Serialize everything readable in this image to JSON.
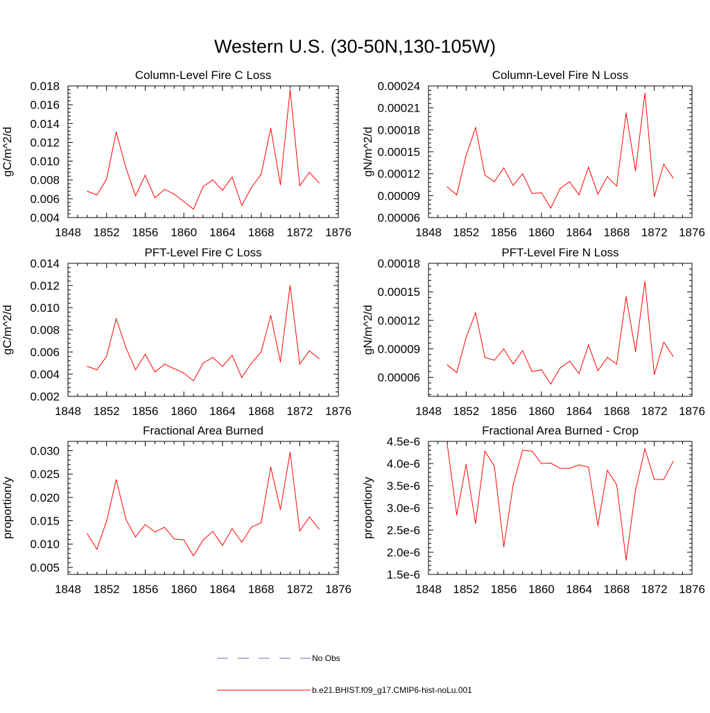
{
  "figure": {
    "title": "Western U.S. (30-50N,130-105W)"
  },
  "legend": {
    "items": [
      {
        "label": "No Obs",
        "color": "#6a6ab8",
        "dash": true
      },
      {
        "label": "b.e21.BHIST.f09_g17.CMIP6-hist-noLu.001",
        "color": "#ff0000",
        "dash": false
      }
    ]
  },
  "colors": {
    "series": "#ff0000",
    "obs": "#6a6ab8"
  },
  "chart_data": [
    {
      "type": "line",
      "title": "Column-Level Fire C Loss",
      "ylabel": "gC/m^2/d",
      "xlim": [
        1848,
        1876
      ],
      "ylim": [
        0.004,
        0.018
      ],
      "xticks": [
        "1848",
        "1852",
        "1856",
        "1860",
        "1864",
        "1868",
        "1872",
        "1876"
      ],
      "yticks": [
        "0.004",
        "0.006",
        "0.008",
        "0.010",
        "0.012",
        "0.014",
        "0.016",
        "0.018"
      ],
      "x": [
        1850,
        1851,
        1852,
        1853,
        1854,
        1855,
        1856,
        1857,
        1858,
        1859,
        1860,
        1861,
        1862,
        1863,
        1864,
        1865,
        1866,
        1867,
        1868,
        1869,
        1870,
        1871,
        1872,
        1873,
        1874
      ],
      "series": [
        {
          "name": "b.e21.BHIST.f09_g17.CMIP6-hist-noLu.001",
          "values": [
            0.0068,
            0.0064,
            0.0081,
            0.0131,
            0.0093,
            0.0063,
            0.0085,
            0.0061,
            0.007,
            0.0065,
            0.0057,
            0.0049,
            0.0073,
            0.008,
            0.0069,
            0.0083,
            0.0053,
            0.0072,
            0.0086,
            0.0135,
            0.0075,
            0.0176,
            0.0074,
            0.0088,
            0.0077
          ]
        }
      ]
    },
    {
      "type": "line",
      "title": "Column-Level Fire N Loss",
      "ylabel": "gN/m^2/d",
      "xlim": [
        1848,
        1876
      ],
      "ylim": [
        6e-05,
        0.00024
      ],
      "xticks": [
        "1848",
        "1852",
        "1856",
        "1860",
        "1864",
        "1868",
        "1872",
        "1876"
      ],
      "yticks": [
        "0.00006",
        "0.00009",
        "0.00012",
        "0.00015",
        "0.00018",
        "0.00021",
        "0.00024"
      ],
      "x": [
        1850,
        1851,
        1852,
        1853,
        1854,
        1855,
        1856,
        1857,
        1858,
        1859,
        1860,
        1861,
        1862,
        1863,
        1864,
        1865,
        1866,
        1867,
        1868,
        1869,
        1870,
        1871,
        1872,
        1873,
        1874
      ],
      "series": [
        {
          "name": "b.e21.BHIST.f09_g17.CMIP6-hist-noLu.001",
          "values": [
            0.000102,
            9.1e-05,
            0.000145,
            0.000183,
            0.000118,
            0.000109,
            0.000128,
            0.000104,
            0.00012,
            9.3e-05,
            9.4e-05,
            7.3e-05,
            0.0001,
            0.000109,
            9.1e-05,
            0.000129,
            9.2e-05,
            0.000116,
            0.000103,
            0.000203,
            0.000124,
            0.00023,
            8.9e-05,
            0.000133,
            0.000114
          ]
        }
      ]
    },
    {
      "type": "line",
      "title": "PFT-Level Fire C Loss",
      "ylabel": "gC/m^2/d",
      "xlim": [
        1848,
        1876
      ],
      "ylim": [
        0.002,
        0.014
      ],
      "xticks": [
        "1848",
        "1852",
        "1856",
        "1860",
        "1864",
        "1868",
        "1872",
        "1876"
      ],
      "yticks": [
        "0.002",
        "0.004",
        "0.006",
        "0.008",
        "0.010",
        "0.012",
        "0.014"
      ],
      "x": [
        1850,
        1851,
        1852,
        1853,
        1854,
        1855,
        1856,
        1857,
        1858,
        1859,
        1860,
        1861,
        1862,
        1863,
        1864,
        1865,
        1866,
        1867,
        1868,
        1869,
        1870,
        1871,
        1872,
        1873,
        1874
      ],
      "series": [
        {
          "name": "b.e21.BHIST.f09_g17.CMIP6-hist-noLu.001",
          "values": [
            0.0047,
            0.0044,
            0.0056,
            0.009,
            0.0064,
            0.0044,
            0.0058,
            0.0042,
            0.0049,
            0.0045,
            0.0041,
            0.0034,
            0.005,
            0.0055,
            0.0047,
            0.0057,
            0.0037,
            0.005,
            0.006,
            0.0093,
            0.0051,
            0.012,
            0.0049,
            0.0061,
            0.0054
          ]
        }
      ]
    },
    {
      "type": "line",
      "title": "PFT-Level Fire N Loss",
      "ylabel": "gN/m^2/d",
      "xlim": [
        1848,
        1876
      ],
      "ylim": [
        4e-05,
        0.00018
      ],
      "xticks": [
        "1848",
        "1852",
        "1856",
        "1860",
        "1864",
        "1868",
        "1872",
        "1876"
      ],
      "yticks": [
        "0.00006",
        "0.00009",
        "0.00012",
        "0.00015",
        "0.00018"
      ],
      "x": [
        1850,
        1851,
        1852,
        1853,
        1854,
        1855,
        1856,
        1857,
        1858,
        1859,
        1860,
        1861,
        1862,
        1863,
        1864,
        1865,
        1866,
        1867,
        1868,
        1869,
        1870,
        1871,
        1872,
        1873,
        1874
      ],
      "series": [
        {
          "name": "b.e21.BHIST.f09_g17.CMIP6-hist-noLu.001",
          "values": [
            7.3e-05,
            6.5e-05,
            0.000102,
            0.000128,
            8.1e-05,
            7.8e-05,
            9e-05,
            7.4e-05,
            8.8e-05,
            6.6e-05,
            6.8e-05,
            5.3e-05,
            7e-05,
            7.7e-05,
            6.4e-05,
            9.4e-05,
            6.7e-05,
            8.1e-05,
            7.4e-05,
            0.000145,
            8.7e-05,
            0.000161,
            6.3e-05,
            9.7e-05,
            8.2e-05
          ]
        }
      ]
    },
    {
      "type": "line",
      "title": "Fractional Area Burned",
      "ylabel": "proportion/y",
      "xlim": [
        1848,
        1876
      ],
      "ylim": [
        0.0035,
        0.032
      ],
      "xticks": [
        "1848",
        "1852",
        "1856",
        "1860",
        "1864",
        "1868",
        "1872",
        "1876"
      ],
      "yticks": [
        "0.005",
        "0.010",
        "0.015",
        "0.020",
        "0.025",
        "0.030"
      ],
      "x": [
        1850,
        1851,
        1852,
        1853,
        1854,
        1855,
        1856,
        1857,
        1858,
        1859,
        1860,
        1861,
        1862,
        1863,
        1864,
        1865,
        1866,
        1867,
        1868,
        1869,
        1870,
        1871,
        1872,
        1873,
        1874
      ],
      "series": [
        {
          "name": "b.e21.BHIST.f09_g17.CMIP6-hist-noLu.001",
          "values": [
            0.0122,
            0.0089,
            0.0149,
            0.0238,
            0.0153,
            0.0115,
            0.0142,
            0.0126,
            0.0136,
            0.0111,
            0.0109,
            0.0075,
            0.0109,
            0.0127,
            0.0097,
            0.0133,
            0.0104,
            0.0136,
            0.0146,
            0.0265,
            0.0174,
            0.0297,
            0.0128,
            0.0158,
            0.0132
          ]
        }
      ]
    },
    {
      "type": "line",
      "title": "Fractional Area Burned - Crop",
      "ylabel": "proportion/y",
      "xlim": [
        1848,
        1876
      ],
      "ylim": [
        1.5e-06,
        4.5e-06
      ],
      "xticks": [
        "1848",
        "1852",
        "1856",
        "1860",
        "1864",
        "1868",
        "1872",
        "1876"
      ],
      "yticks": [
        "1.5e-6",
        "2.0e-6",
        "2.5e-6",
        "3.0e-6",
        "3.5e-6",
        "4.0e-6",
        "4.5e-6"
      ],
      "x": [
        1850,
        1851,
        1852,
        1853,
        1854,
        1855,
        1856,
        1857,
        1858,
        1859,
        1860,
        1861,
        1862,
        1863,
        1864,
        1865,
        1866,
        1867,
        1868,
        1869,
        1870,
        1871,
        1872,
        1873,
        1874
      ],
      "series": [
        {
          "name": "b.e21.BHIST.f09_g17.CMIP6-hist-noLu.001",
          "values": [
            4.43e-06,
            2.84e-06,
            3.98e-06,
            2.65e-06,
            4.28e-06,
            3.94e-06,
            2.12e-06,
            3.52e-06,
            4.3e-06,
            4.28e-06,
            4e-06,
            4.01e-06,
            3.89e-06,
            3.89e-06,
            3.97e-06,
            3.92e-06,
            2.6e-06,
            3.85e-06,
            3.52e-06,
            1.82e-06,
            3.4e-06,
            4.33e-06,
            3.64e-06,
            3.64e-06,
            4.05e-06
          ]
        }
      ]
    }
  ]
}
